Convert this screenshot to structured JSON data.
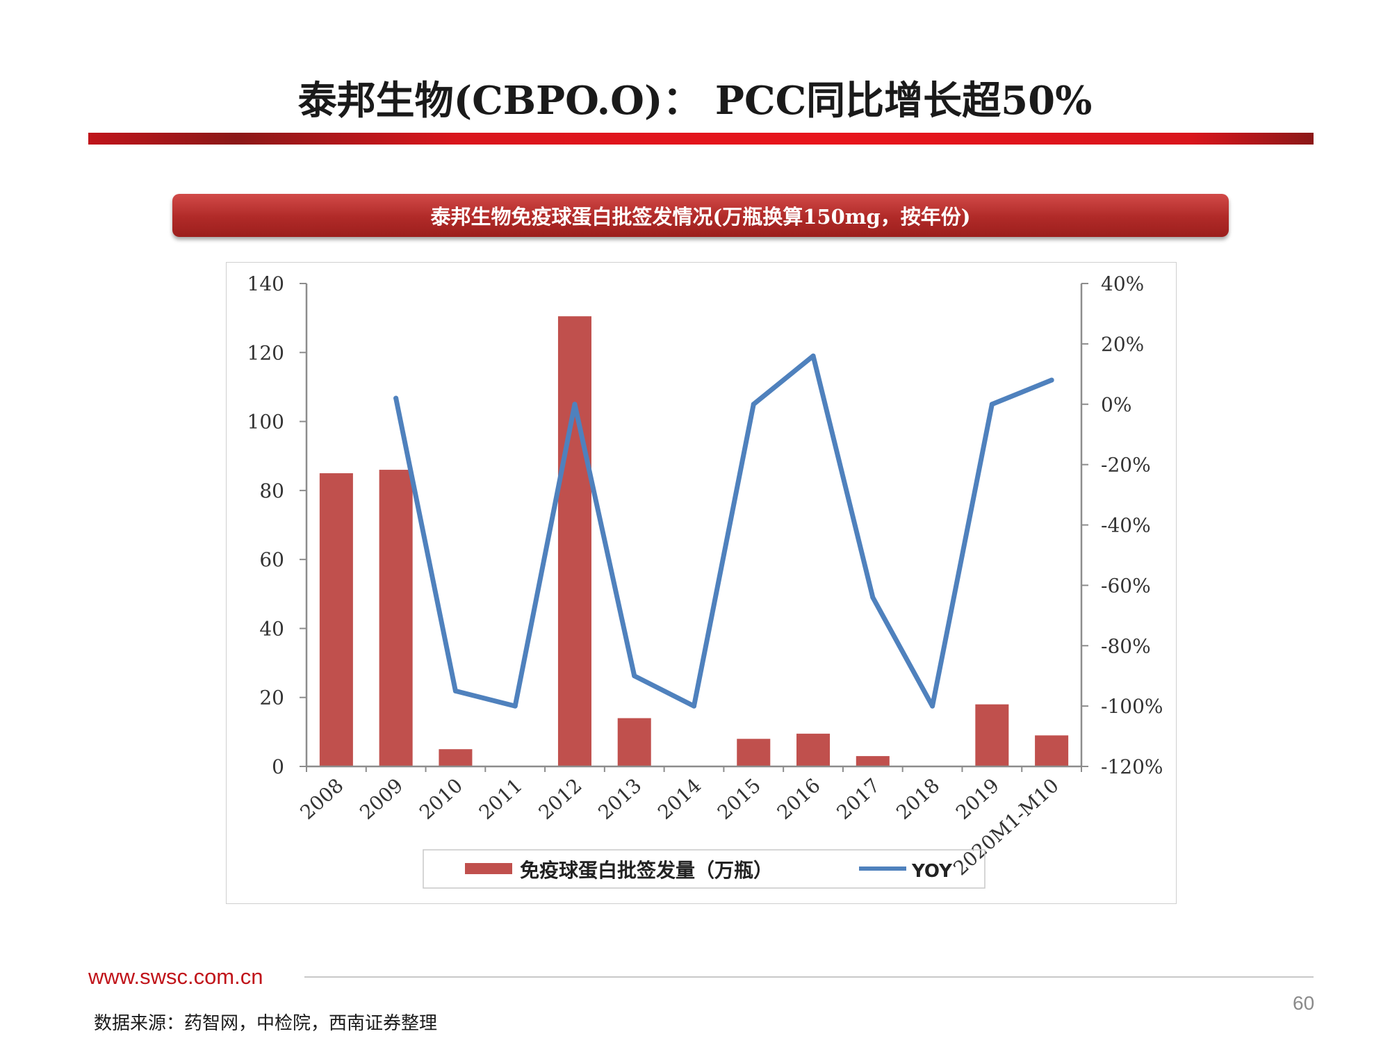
{
  "header": {
    "title": "泰邦生物(CBPO.O)： PCC同比增长超50%"
  },
  "chart_banner": {
    "label": "泰邦生物免疫球蛋白批签发情况(万瓶换算150mg，按年份)"
  },
  "chart_data": {
    "type": "bar",
    "categories": [
      "2008",
      "2009",
      "2010",
      "2011",
      "2012",
      "2013",
      "2014",
      "2015",
      "2016",
      "2017",
      "2018",
      "2019",
      "2020M1-M10"
    ],
    "series": [
      {
        "name": "免疫球蛋白批签发量（万瓶）",
        "type": "bar",
        "axis": "left",
        "color": "#c0504d",
        "values": [
          85,
          86,
          5,
          0,
          130.5,
          14,
          0,
          8,
          9.5,
          3,
          0,
          18,
          9
        ]
      },
      {
        "name": "YOY",
        "type": "line",
        "axis": "right",
        "color": "#4f81bd",
        "values": [
          null,
          0.02,
          -0.95,
          -1.0,
          0.0,
          -0.9,
          -1.0,
          0.0,
          0.16,
          -0.64,
          -1.0,
          0.0,
          0.08
        ]
      }
    ],
    "y_left": {
      "ylim": [
        0,
        140
      ],
      "ticks": [
        0,
        20,
        40,
        60,
        80,
        100,
        120,
        140
      ],
      "tick_labels": [
        "0",
        "20",
        "40",
        "60",
        "80",
        "100",
        "120",
        "140"
      ]
    },
    "y_right": {
      "ylim": [
        -1.2,
        0.4
      ],
      "ticks": [
        -1.2,
        -1.0,
        -0.8,
        -0.6,
        -0.4,
        -0.2,
        0.0,
        0.2,
        0.4
      ],
      "tick_labels": [
        "-120%",
        "-100%",
        "-80%",
        "-60%",
        "-40%",
        "-20%",
        "0%",
        "20%",
        "40%"
      ]
    },
    "legend": "bottom",
    "grid": false
  },
  "footer": {
    "url": "www.swsc.com.cn",
    "page_number": "60",
    "source": "数据来源：药智网，中检院，西南证券整理"
  }
}
